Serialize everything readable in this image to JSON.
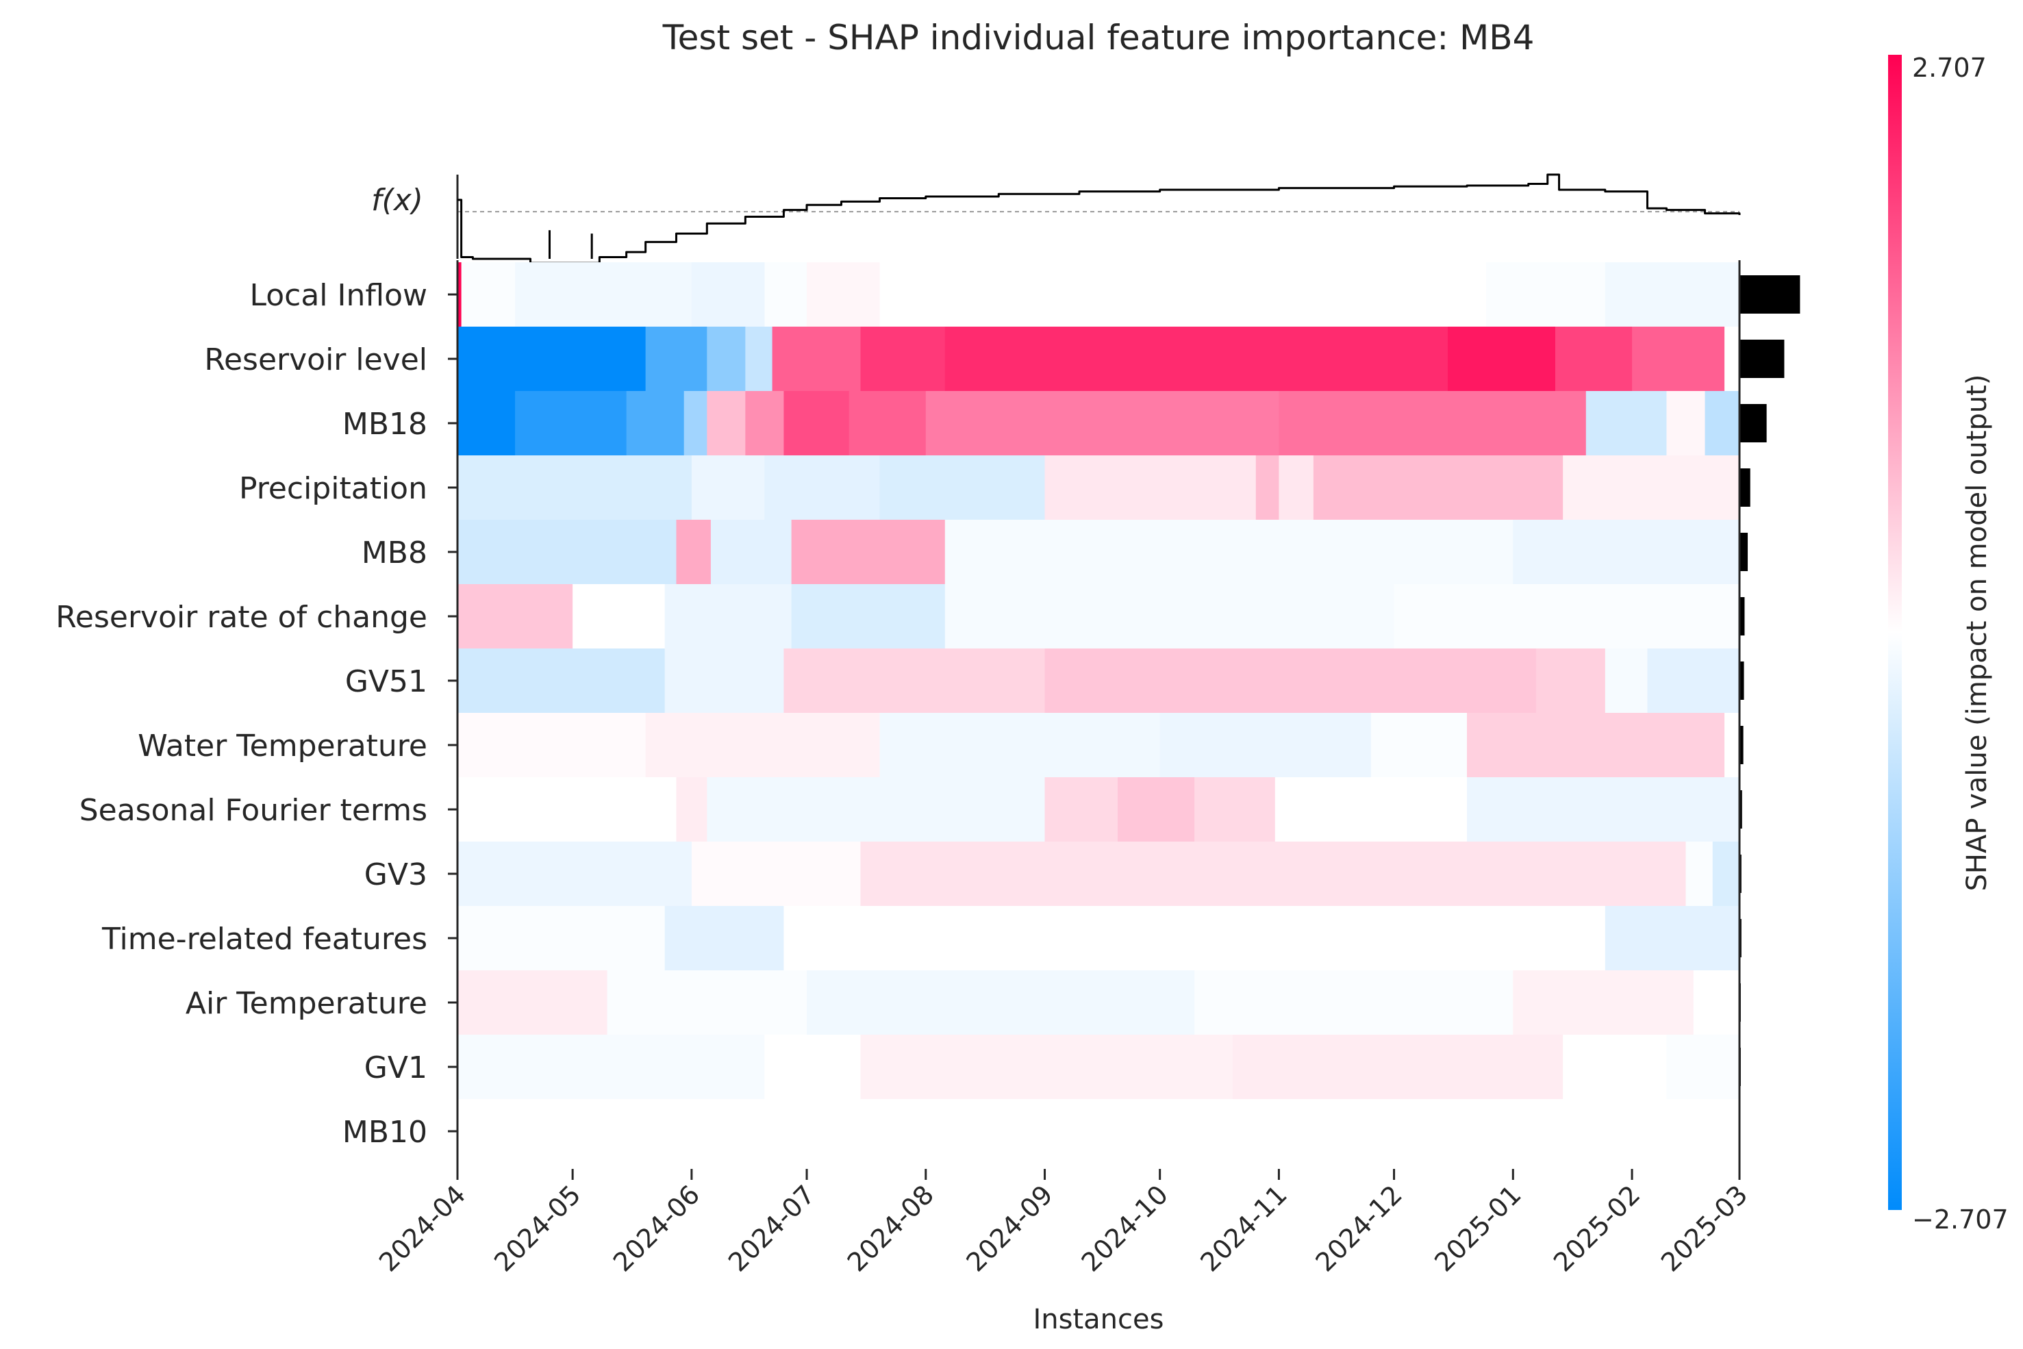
{
  "chart_data": {
    "type": "heatmap",
    "title": "Test set - SHAP individual feature importance: MB4",
    "xlabel": "Instances",
    "fx_label": "f(x)",
    "x_ticks": [
      "2024-04",
      "2024-05",
      "2024-06",
      "2024-07",
      "2024-08",
      "2024-09",
      "2024-10",
      "2024-11",
      "2024-12",
      "2025-01",
      "2025-02",
      "2025-03"
    ],
    "x_range": [
      "2024-04-01",
      "2025-03-01"
    ],
    "colorbar": {
      "label": "SHAP value (impact on model output)",
      "max_label": "2.707",
      "min_label": "−2.707",
      "max": 2.707,
      "min": -2.707,
      "low_color": "#008bfb",
      "high_color": "#ff0052"
    },
    "features": [
      {
        "name": "Local Inflow",
        "importance": 0.95,
        "segments": [
          [
            "2024-04-01",
            2.7
          ],
          [
            "2024-04-02",
            -0.05
          ],
          [
            "2024-04-16",
            -0.15
          ],
          [
            "2024-06-01",
            -0.2
          ],
          [
            "2024-06-20",
            -0.05
          ],
          [
            "2024-07-01",
            0.1
          ],
          [
            "2024-07-20",
            0.0
          ],
          [
            "2024-12-25",
            -0.05
          ],
          [
            "2025-01-25",
            -0.15
          ],
          [
            "2025-03-01",
            null
          ]
        ]
      },
      {
        "name": "Reservoir level",
        "importance": 0.7,
        "segments": [
          [
            "2024-04-01",
            -2.7
          ],
          [
            "2024-05-20",
            -1.9
          ],
          [
            "2024-06-05",
            -1.2
          ],
          [
            "2024-06-15",
            -0.6
          ],
          [
            "2024-06-22",
            1.7
          ],
          [
            "2024-07-15",
            2.1
          ],
          [
            "2024-08-06",
            2.25
          ],
          [
            "2024-12-15",
            2.45
          ],
          [
            "2025-01-12",
            2.0
          ],
          [
            "2025-02-01",
            1.7
          ],
          [
            "2025-02-25",
            null
          ]
        ]
      },
      {
        "name": "MB18",
        "importance": 0.42,
        "segments": [
          [
            "2024-04-01",
            -2.7
          ],
          [
            "2024-04-16",
            -2.3
          ],
          [
            "2024-05-15",
            -1.9
          ],
          [
            "2024-05-30",
            -1.0
          ],
          [
            "2024-06-05",
            0.7
          ],
          [
            "2024-06-15",
            1.2
          ],
          [
            "2024-06-25",
            1.9
          ],
          [
            "2024-07-12",
            1.7
          ],
          [
            "2024-08-01",
            1.4
          ],
          [
            "2024-11-01",
            1.5
          ],
          [
            "2025-01-20",
            -0.5
          ],
          [
            "2025-02-10",
            0.1
          ],
          [
            "2025-02-20",
            -0.7
          ],
          [
            "2025-03-01",
            null
          ]
        ]
      },
      {
        "name": "Precipitation",
        "importance": 0.16,
        "segments": [
          [
            "2024-04-01",
            -0.4
          ],
          [
            "2024-06-01",
            -0.2
          ],
          [
            "2024-06-20",
            -0.3
          ],
          [
            "2024-07-20",
            -0.4
          ],
          [
            "2024-09-01",
            0.25
          ],
          [
            "2024-10-26",
            0.7
          ],
          [
            "2024-11-01",
            0.25
          ],
          [
            "2024-11-10",
            0.7
          ],
          [
            "2025-01-14",
            0.15
          ],
          [
            "2025-03-01",
            null
          ]
        ]
      },
      {
        "name": "MB8",
        "importance": 0.12,
        "segments": [
          [
            "2024-04-01",
            -0.5
          ],
          [
            "2024-05-28",
            0.9
          ],
          [
            "2024-06-06",
            -0.3
          ],
          [
            "2024-06-27",
            0.9
          ],
          [
            "2024-08-06",
            -0.1
          ],
          [
            "2025-01-01",
            -0.2
          ],
          [
            "2025-03-01",
            null
          ]
        ]
      },
      {
        "name": "Reservoir rate of change",
        "importance": 0.07,
        "segments": [
          [
            "2024-04-01",
            0.6
          ],
          [
            "2024-05-01",
            0.0
          ],
          [
            "2024-05-25",
            -0.2
          ],
          [
            "2024-06-27",
            -0.4
          ],
          [
            "2024-08-06",
            -0.1
          ],
          [
            "2024-12-01",
            -0.05
          ],
          [
            "2025-03-01",
            null
          ]
        ]
      },
      {
        "name": "GV51",
        "importance": 0.06,
        "segments": [
          [
            "2024-04-01",
            -0.5
          ],
          [
            "2024-05-25",
            -0.2
          ],
          [
            "2024-06-25",
            0.45
          ],
          [
            "2024-09-01",
            0.6
          ],
          [
            "2025-01-07",
            0.5
          ],
          [
            "2025-01-25",
            -0.1
          ],
          [
            "2025-02-05",
            -0.3
          ],
          [
            "2025-03-01",
            null
          ]
        ]
      },
      {
        "name": "Water Temperature",
        "importance": 0.05,
        "segments": [
          [
            "2024-04-01",
            0.05
          ],
          [
            "2024-05-20",
            0.15
          ],
          [
            "2024-07-20",
            -0.15
          ],
          [
            "2024-10-01",
            -0.2
          ],
          [
            "2024-11-25",
            -0.05
          ],
          [
            "2024-12-20",
            0.5
          ],
          [
            "2025-02-25",
            null
          ]
        ]
      },
      {
        "name": "Seasonal Fourier terms",
        "importance": 0.03,
        "segments": [
          [
            "2024-04-01",
            0.0
          ],
          [
            "2024-05-28",
            0.2
          ],
          [
            "2024-06-05",
            -0.15
          ],
          [
            "2024-09-01",
            0.4
          ],
          [
            "2024-09-20",
            0.6
          ],
          [
            "2024-10-10",
            0.4
          ],
          [
            "2024-10-31",
            0.0
          ],
          [
            "2024-12-20",
            -0.2
          ],
          [
            "2025-03-01",
            null
          ]
        ]
      },
      {
        "name": "GV3",
        "importance": 0.02,
        "segments": [
          [
            "2024-04-01",
            -0.2
          ],
          [
            "2024-06-01",
            0.05
          ],
          [
            "2024-07-15",
            0.3
          ],
          [
            "2025-02-15",
            -0.05
          ],
          [
            "2025-02-22",
            -0.4
          ],
          [
            "2025-03-01",
            null
          ]
        ]
      },
      {
        "name": "Time-related features",
        "importance": 0.02,
        "segments": [
          [
            "2024-04-01",
            -0.05
          ],
          [
            "2024-05-25",
            -0.3
          ],
          [
            "2024-06-25",
            0.0
          ],
          [
            "2025-01-25",
            -0.3
          ],
          [
            "2025-03-01",
            null
          ]
        ]
      },
      {
        "name": "Air Temperature",
        "importance": 0.01,
        "segments": [
          [
            "2024-04-01",
            0.2
          ],
          [
            "2024-05-10",
            -0.05
          ],
          [
            "2024-07-01",
            -0.15
          ],
          [
            "2024-10-10",
            -0.05
          ],
          [
            "2025-01-01",
            0.15
          ],
          [
            "2025-02-17",
            0.0
          ],
          [
            "2025-03-01",
            null
          ]
        ]
      },
      {
        "name": "GV1",
        "importance": 0.01,
        "segments": [
          [
            "2024-04-01",
            -0.1
          ],
          [
            "2024-06-20",
            0.0
          ],
          [
            "2024-07-15",
            0.15
          ],
          [
            "2024-10-20",
            0.2
          ],
          [
            "2025-01-14",
            0.0
          ],
          [
            "2025-02-10",
            -0.05
          ],
          [
            "2025-03-01",
            null
          ]
        ]
      },
      {
        "name": "MB10",
        "importance": 0.0,
        "segments": [
          [
            "2024-04-01",
            0.0
          ],
          [
            "2025-03-01",
            null
          ]
        ]
      }
    ],
    "fx_series": [
      [
        "2024-04-01",
        0.7
      ],
      [
        "2024-04-02",
        0.02
      ],
      [
        "2024-04-05",
        0.0
      ],
      [
        "2024-04-20",
        -0.05
      ],
      [
        "2024-05-01",
        -0.05
      ],
      [
        "2024-05-08",
        0.02
      ],
      [
        "2024-05-15",
        0.08
      ],
      [
        "2024-05-20",
        0.2
      ],
      [
        "2024-05-28",
        0.3
      ],
      [
        "2024-06-05",
        0.42
      ],
      [
        "2024-06-15",
        0.5
      ],
      [
        "2024-06-25",
        0.58
      ],
      [
        "2024-07-01",
        0.64
      ],
      [
        "2024-07-10",
        0.68
      ],
      [
        "2024-07-20",
        0.72
      ],
      [
        "2024-08-01",
        0.74
      ],
      [
        "2024-08-20",
        0.77
      ],
      [
        "2024-09-10",
        0.8
      ],
      [
        "2024-10-01",
        0.82
      ],
      [
        "2024-11-01",
        0.84
      ],
      [
        "2024-12-01",
        0.86
      ],
      [
        "2024-12-20",
        0.87
      ],
      [
        "2025-01-05",
        0.89
      ],
      [
        "2025-01-10",
        1.0
      ],
      [
        "2025-01-13",
        0.82
      ],
      [
        "2025-01-25",
        0.8
      ],
      [
        "2025-02-05",
        0.6
      ],
      [
        "2025-02-10",
        0.58
      ],
      [
        "2025-02-20",
        0.54
      ],
      [
        "2025-03-01",
        0.52
      ]
    ],
    "fx_spikes": [
      [
        "2024-04-25",
        0.34
      ],
      [
        "2024-05-06",
        0.3
      ]
    ],
    "fx_reference": 0.56
  }
}
